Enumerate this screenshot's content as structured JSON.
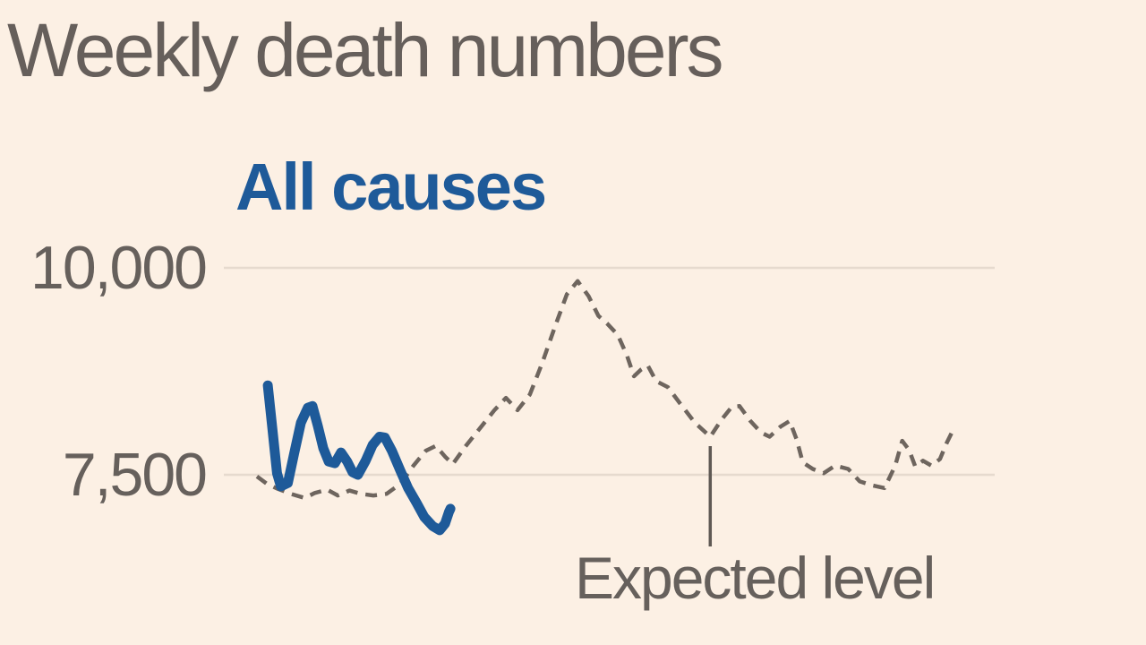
{
  "page": {
    "background": "#FCF0E4"
  },
  "header": {
    "title": "Weekly death numbers"
  },
  "labels": {
    "legend_all_causes": "All causes",
    "annotation_expected": "Expected level",
    "ytick_10000": "10,000",
    "ytick_7500": "7,500"
  },
  "chart_data": {
    "type": "line",
    "title": "Weekly death numbers",
    "xlabel": "",
    "ylabel": "",
    "x_axis_labels_visible": false,
    "grid": true,
    "gridline_color": "#E6DACE",
    "yticks": [
      {
        "value": 10000,
        "label": "10,000"
      },
      {
        "value": 7500,
        "label": "7,500"
      }
    ],
    "ylim": [
      6600,
      10350
    ],
    "legend": {
      "position": "top-left",
      "entries": [
        "All causes"
      ]
    },
    "annotation": {
      "text": "Expected level",
      "x_fraction": 0.631
    },
    "series": [
      {
        "name": "All causes",
        "color": "#1E5A99",
        "style": "solid",
        "stroke_width": 11,
        "points": [
          [
            0.057,
            8580
          ],
          [
            0.063,
            8060
          ],
          [
            0.069,
            7520
          ],
          [
            0.074,
            7360
          ],
          [
            0.083,
            7400
          ],
          [
            0.091,
            7750
          ],
          [
            0.1,
            8130
          ],
          [
            0.109,
            8310
          ],
          [
            0.115,
            8330
          ],
          [
            0.122,
            8090
          ],
          [
            0.129,
            7820
          ],
          [
            0.136,
            7660
          ],
          [
            0.144,
            7640
          ],
          [
            0.152,
            7770
          ],
          [
            0.16,
            7660
          ],
          [
            0.167,
            7530
          ],
          [
            0.174,
            7500
          ],
          [
            0.184,
            7670
          ],
          [
            0.193,
            7860
          ],
          [
            0.202,
            7960
          ],
          [
            0.209,
            7950
          ],
          [
            0.218,
            7790
          ],
          [
            0.229,
            7550
          ],
          [
            0.239,
            7340
          ],
          [
            0.25,
            7160
          ],
          [
            0.26,
            6990
          ],
          [
            0.271,
            6880
          ],
          [
            0.28,
            6830
          ],
          [
            0.287,
            6910
          ],
          [
            0.292,
            7050
          ],
          [
            0.294,
            7090
          ]
        ]
      },
      {
        "name": "Expected level",
        "color": "#6E655E",
        "style": "dashed",
        "stroke_width": 4.5,
        "points": [
          [
            0.043,
            7480
          ],
          [
            0.056,
            7390
          ],
          [
            0.07,
            7330
          ],
          [
            0.087,
            7270
          ],
          [
            0.105,
            7220
          ],
          [
            0.118,
            7280
          ],
          [
            0.134,
            7320
          ],
          [
            0.148,
            7250
          ],
          [
            0.163,
            7310
          ],
          [
            0.178,
            7270
          ],
          [
            0.194,
            7250
          ],
          [
            0.211,
            7270
          ],
          [
            0.229,
            7390
          ],
          [
            0.246,
            7610
          ],
          [
            0.262,
            7790
          ],
          [
            0.275,
            7850
          ],
          [
            0.287,
            7720
          ],
          [
            0.297,
            7630
          ],
          [
            0.314,
            7850
          ],
          [
            0.332,
            8060
          ],
          [
            0.351,
            8280
          ],
          [
            0.366,
            8430
          ],
          [
            0.381,
            8280
          ],
          [
            0.397,
            8470
          ],
          [
            0.413,
            8850
          ],
          [
            0.43,
            9300
          ],
          [
            0.445,
            9680
          ],
          [
            0.459,
            9840
          ],
          [
            0.473,
            9660
          ],
          [
            0.486,
            9420
          ],
          [
            0.497,
            9330
          ],
          [
            0.511,
            9190
          ],
          [
            0.523,
            8940
          ],
          [
            0.532,
            8690
          ],
          [
            0.541,
            8770
          ],
          [
            0.55,
            8820
          ],
          [
            0.561,
            8630
          ],
          [
            0.576,
            8560
          ],
          [
            0.592,
            8360
          ],
          [
            0.611,
            8130
          ],
          [
            0.631,
            7960
          ],
          [
            0.646,
            8170
          ],
          [
            0.659,
            8320
          ],
          [
            0.669,
            8330
          ],
          [
            0.683,
            8150
          ],
          [
            0.697,
            8010
          ],
          [
            0.708,
            7960
          ],
          [
            0.722,
            8080
          ],
          [
            0.734,
            8150
          ],
          [
            0.743,
            7930
          ],
          [
            0.751,
            7650
          ],
          [
            0.764,
            7570
          ],
          [
            0.778,
            7520
          ],
          [
            0.793,
            7610
          ],
          [
            0.81,
            7570
          ],
          [
            0.825,
            7420
          ],
          [
            0.842,
            7370
          ],
          [
            0.857,
            7340
          ],
          [
            0.871,
            7610
          ],
          [
            0.88,
            7910
          ],
          [
            0.889,
            7800
          ],
          [
            0.897,
            7600
          ],
          [
            0.907,
            7670
          ],
          [
            0.918,
            7610
          ],
          [
            0.929,
            7690
          ],
          [
            0.938,
            7890
          ],
          [
            0.947,
            8060
          ]
        ]
      }
    ]
  }
}
